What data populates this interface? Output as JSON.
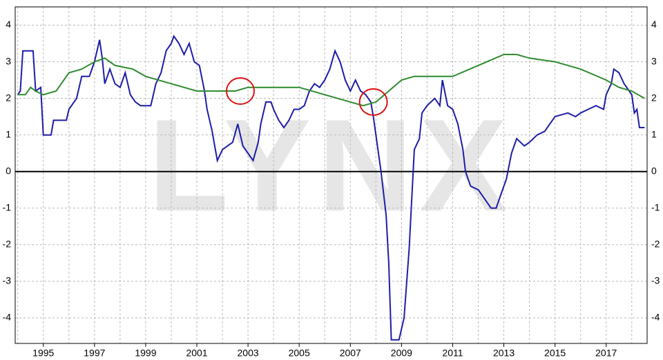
{
  "chart_data": {
    "type": "line",
    "watermark": "LYNX",
    "xlim": [
      1993.9,
      2018.6
    ],
    "ylim": [
      -4.7,
      4.5
    ],
    "xticks": [
      1995,
      1997,
      1999,
      2001,
      2003,
      2005,
      2007,
      2009,
      2011,
      2013,
      2015,
      2017
    ],
    "x_minor_ticks": [
      1994,
      1996,
      1998,
      2000,
      2002,
      2004,
      2006,
      2008,
      2010,
      2012,
      2014,
      2016,
      2018
    ],
    "yticks": [
      -4,
      -3,
      -2,
      -1,
      0,
      1,
      2,
      3,
      4
    ],
    "grid": true,
    "zero_line": true,
    "series": [
      {
        "color": "#1c1ca8",
        "x": [
          1994.0,
          1994.1,
          1994.2,
          1994.6,
          1994.7,
          1994.9,
          1995.0,
          1995.3,
          1995.4,
          1995.9,
          1996.0,
          1996.3,
          1996.5,
          1996.8,
          1997.0,
          1997.2,
          1997.3,
          1997.4,
          1997.6,
          1997.8,
          1998.0,
          1998.2,
          1998.4,
          1998.6,
          1998.8,
          1999.2,
          1999.4,
          1999.6,
          1999.8,
          2000.0,
          2000.1,
          2000.3,
          2000.5,
          2000.7,
          2000.9,
          2001.1,
          2001.3,
          2001.4,
          2001.6,
          2001.7,
          2001.8,
          2002.0,
          2002.2,
          2002.4,
          2002.6,
          2002.8,
          2003.0,
          2003.2,
          2003.4,
          2003.5,
          2003.7,
          2003.9,
          2004.0,
          2004.2,
          2004.4,
          2004.6,
          2004.8,
          2005.0,
          2005.2,
          2005.4,
          2005.6,
          2005.8,
          2006.0,
          2006.2,
          2006.4,
          2006.6,
          2006.8,
          2007.0,
          2007.2,
          2007.4,
          2007.6,
          2007.8,
          2007.9,
          2008.0,
          2008.2,
          2008.4,
          2008.5,
          2008.6,
          2008.9,
          2009.0,
          2009.1,
          2009.3,
          2009.5,
          2009.7,
          2009.8,
          2010.0,
          2010.3,
          2010.5,
          2010.6,
          2010.8,
          2011.0,
          2011.2,
          2011.4,
          2011.5,
          2011.7,
          2012.0,
          2012.3,
          2012.5,
          2012.7,
          2012.9,
          2013.1,
          2013.3,
          2013.5,
          2013.8,
          2014.0,
          2014.3,
          2014.6,
          2014.8,
          2015.0,
          2015.5,
          2015.8,
          2016.0,
          2016.3,
          2016.6,
          2016.9,
          2017.0,
          2017.2,
          2017.3,
          2017.5,
          2017.7,
          2017.9,
          2018.0,
          2018.1,
          2018.2,
          2018.3,
          2018.5
        ],
        "values": [
          2.1,
          2.2,
          3.3,
          3.3,
          2.2,
          2.3,
          1.0,
          1.0,
          1.4,
          1.4,
          1.7,
          2.0,
          2.6,
          2.6,
          3.0,
          3.6,
          3.1,
          2.4,
          2.8,
          2.4,
          2.3,
          2.7,
          2.1,
          1.9,
          1.8,
          1.8,
          2.4,
          2.7,
          3.3,
          3.5,
          3.7,
          3.5,
          3.2,
          3.5,
          3.0,
          2.9,
          2.2,
          1.7,
          1.1,
          0.7,
          0.3,
          0.6,
          0.7,
          0.8,
          1.3,
          0.7,
          0.5,
          0.3,
          0.8,
          1.3,
          1.9,
          1.9,
          1.7,
          1.4,
          1.2,
          1.4,
          1.7,
          1.7,
          1.8,
          2.2,
          2.4,
          2.3,
          2.5,
          2.8,
          3.3,
          3.0,
          2.5,
          2.2,
          2.5,
          2.2,
          2.1,
          1.9,
          1.5,
          1.0,
          0.0,
          -1.2,
          -2.5,
          -4.6,
          -4.6,
          -4.3,
          -4.0,
          -2.1,
          0.6,
          0.9,
          1.6,
          1.8,
          2.0,
          1.8,
          2.5,
          1.8,
          1.7,
          1.3,
          0.6,
          0.0,
          -0.4,
          -0.5,
          -0.8,
          -1.0,
          -1.0,
          -0.6,
          -0.2,
          0.5,
          0.9,
          0.7,
          0.8,
          1.0,
          1.1,
          1.3,
          1.5,
          1.6,
          1.5,
          1.6,
          1.7,
          1.8,
          1.7,
          2.1,
          2.4,
          2.8,
          2.7,
          2.4,
          2.2,
          2.1,
          1.6,
          1.7,
          1.2,
          1.2
        ]
      },
      {
        "color": "#2e8b2e",
        "x": [
          1994.0,
          1994.3,
          1994.5,
          1994.7,
          1995.0,
          1995.5,
          1996.0,
          1996.5,
          1997.0,
          1997.4,
          1997.8,
          1998.5,
          1999.0,
          2000.0,
          2001.0,
          2002.0,
          2002.5,
          2003.0,
          2004.0,
          2005.0,
          2006.0,
          2007.0,
          2007.5,
          2008.0,
          2008.5,
          2009.0,
          2009.5,
          2010.0,
          2011.0,
          2012.0,
          2013.0,
          2013.5,
          2014.0,
          2015.0,
          2016.0,
          2017.0,
          2017.5,
          2018.0,
          2018.5
        ],
        "values": [
          2.1,
          2.1,
          2.3,
          2.2,
          2.1,
          2.2,
          2.7,
          2.8,
          3.0,
          3.1,
          2.9,
          2.8,
          2.6,
          2.4,
          2.2,
          2.2,
          2.2,
          2.3,
          2.3,
          2.3,
          2.1,
          1.9,
          1.8,
          1.9,
          2.2,
          2.5,
          2.6,
          2.6,
          2.6,
          2.9,
          3.2,
          3.2,
          3.1,
          3.0,
          2.8,
          2.5,
          2.3,
          2.2,
          2.0
        ]
      }
    ],
    "highlights": [
      {
        "x": 2002.7,
        "y": 2.2,
        "color": "#dd1111"
      },
      {
        "x": 2007.9,
        "y": 1.9,
        "color": "#dd1111"
      }
    ]
  }
}
